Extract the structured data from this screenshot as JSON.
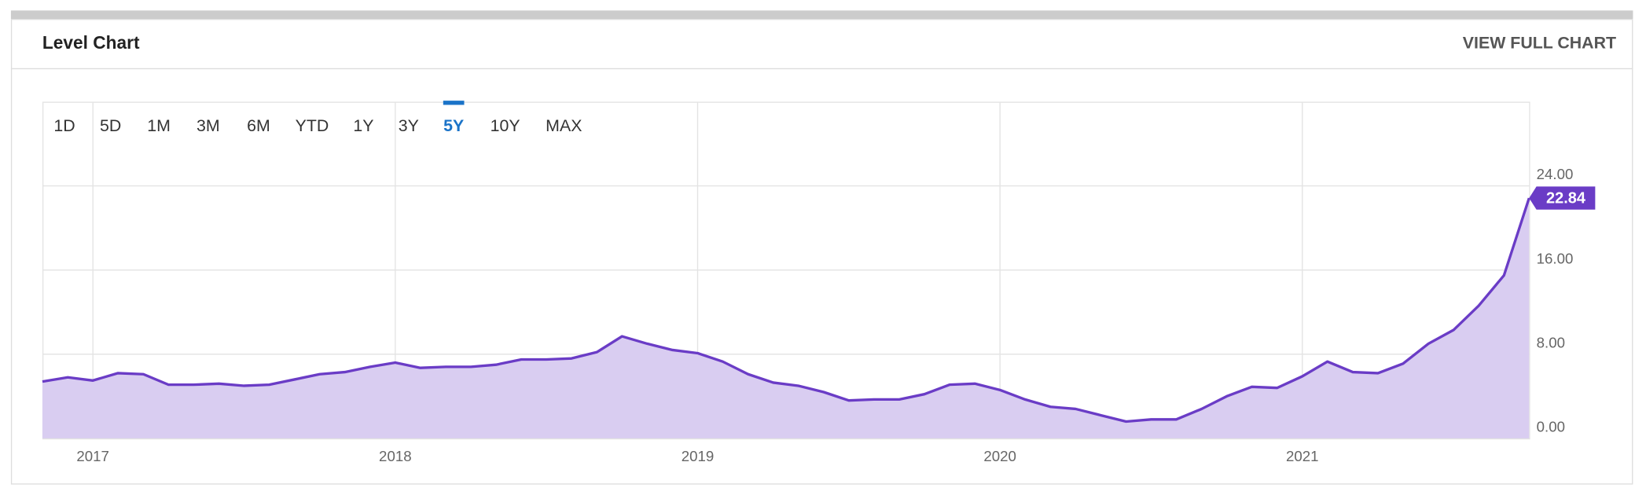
{
  "header": {
    "title": "Level Chart",
    "link": "VIEW FULL CHART"
  },
  "range_buttons": [
    "1D",
    "5D",
    "1M",
    "3M",
    "6M",
    "YTD",
    "1Y",
    "3Y",
    "5Y",
    "10Y",
    "MAX"
  ],
  "active_range_index": 8,
  "chart_data": {
    "type": "area",
    "x": [
      2016.833,
      2016.917,
      2017,
      2017.083,
      2017.167,
      2017.25,
      2017.333,
      2017.417,
      2017.5,
      2017.583,
      2017.667,
      2017.75,
      2017.833,
      2017.917,
      2018,
      2018.083,
      2018.167,
      2018.25,
      2018.333,
      2018.417,
      2018.5,
      2018.583,
      2018.667,
      2018.75,
      2018.833,
      2018.917,
      2019,
      2019.083,
      2019.167,
      2019.25,
      2019.333,
      2019.417,
      2019.5,
      2019.583,
      2019.667,
      2019.75,
      2019.833,
      2019.917,
      2020,
      2020.083,
      2020.167,
      2020.25,
      2020.333,
      2020.417,
      2020.5,
      2020.583,
      2020.667,
      2020.75,
      2020.833,
      2020.917,
      2021,
      2021.083,
      2021.167,
      2021.25,
      2021.333,
      2021.417,
      2021.5,
      2021.583,
      2021.667,
      2021.75
    ],
    "values": [
      5.4,
      5.8,
      5.5,
      6.2,
      6.1,
      5.1,
      5.1,
      5.2,
      5.0,
      5.1,
      5.6,
      6.1,
      6.3,
      6.8,
      7.2,
      6.7,
      6.8,
      6.8,
      7.0,
      7.5,
      7.5,
      7.6,
      8.2,
      9.7,
      9.0,
      8.4,
      8.1,
      7.3,
      6.1,
      5.3,
      5.0,
      4.4,
      3.6,
      3.7,
      3.7,
      4.2,
      5.1,
      5.2,
      4.6,
      3.7,
      3.0,
      2.8,
      2.2,
      1.6,
      1.8,
      1.8,
      2.8,
      4.0,
      4.9,
      4.8,
      5.9,
      7.3,
      6.3,
      6.2,
      7.1,
      9.0,
      10.3,
      12.6,
      15.5,
      22.84
    ],
    "color": "#6a3cc6",
    "fill_color": "#d9cdf1",
    "xlim": [
      2016.833,
      2021.75
    ],
    "xticks": [
      2017,
      2018,
      2019,
      2020,
      2021
    ],
    "ylim": [
      0,
      32
    ],
    "yticks": [
      {
        "value": 0,
        "label": "0.00"
      },
      {
        "value": 8,
        "label": "8.00"
      },
      {
        "value": 16,
        "label": "16.00"
      },
      {
        "value": 24,
        "label": "24.00"
      }
    ],
    "grid": true
  }
}
